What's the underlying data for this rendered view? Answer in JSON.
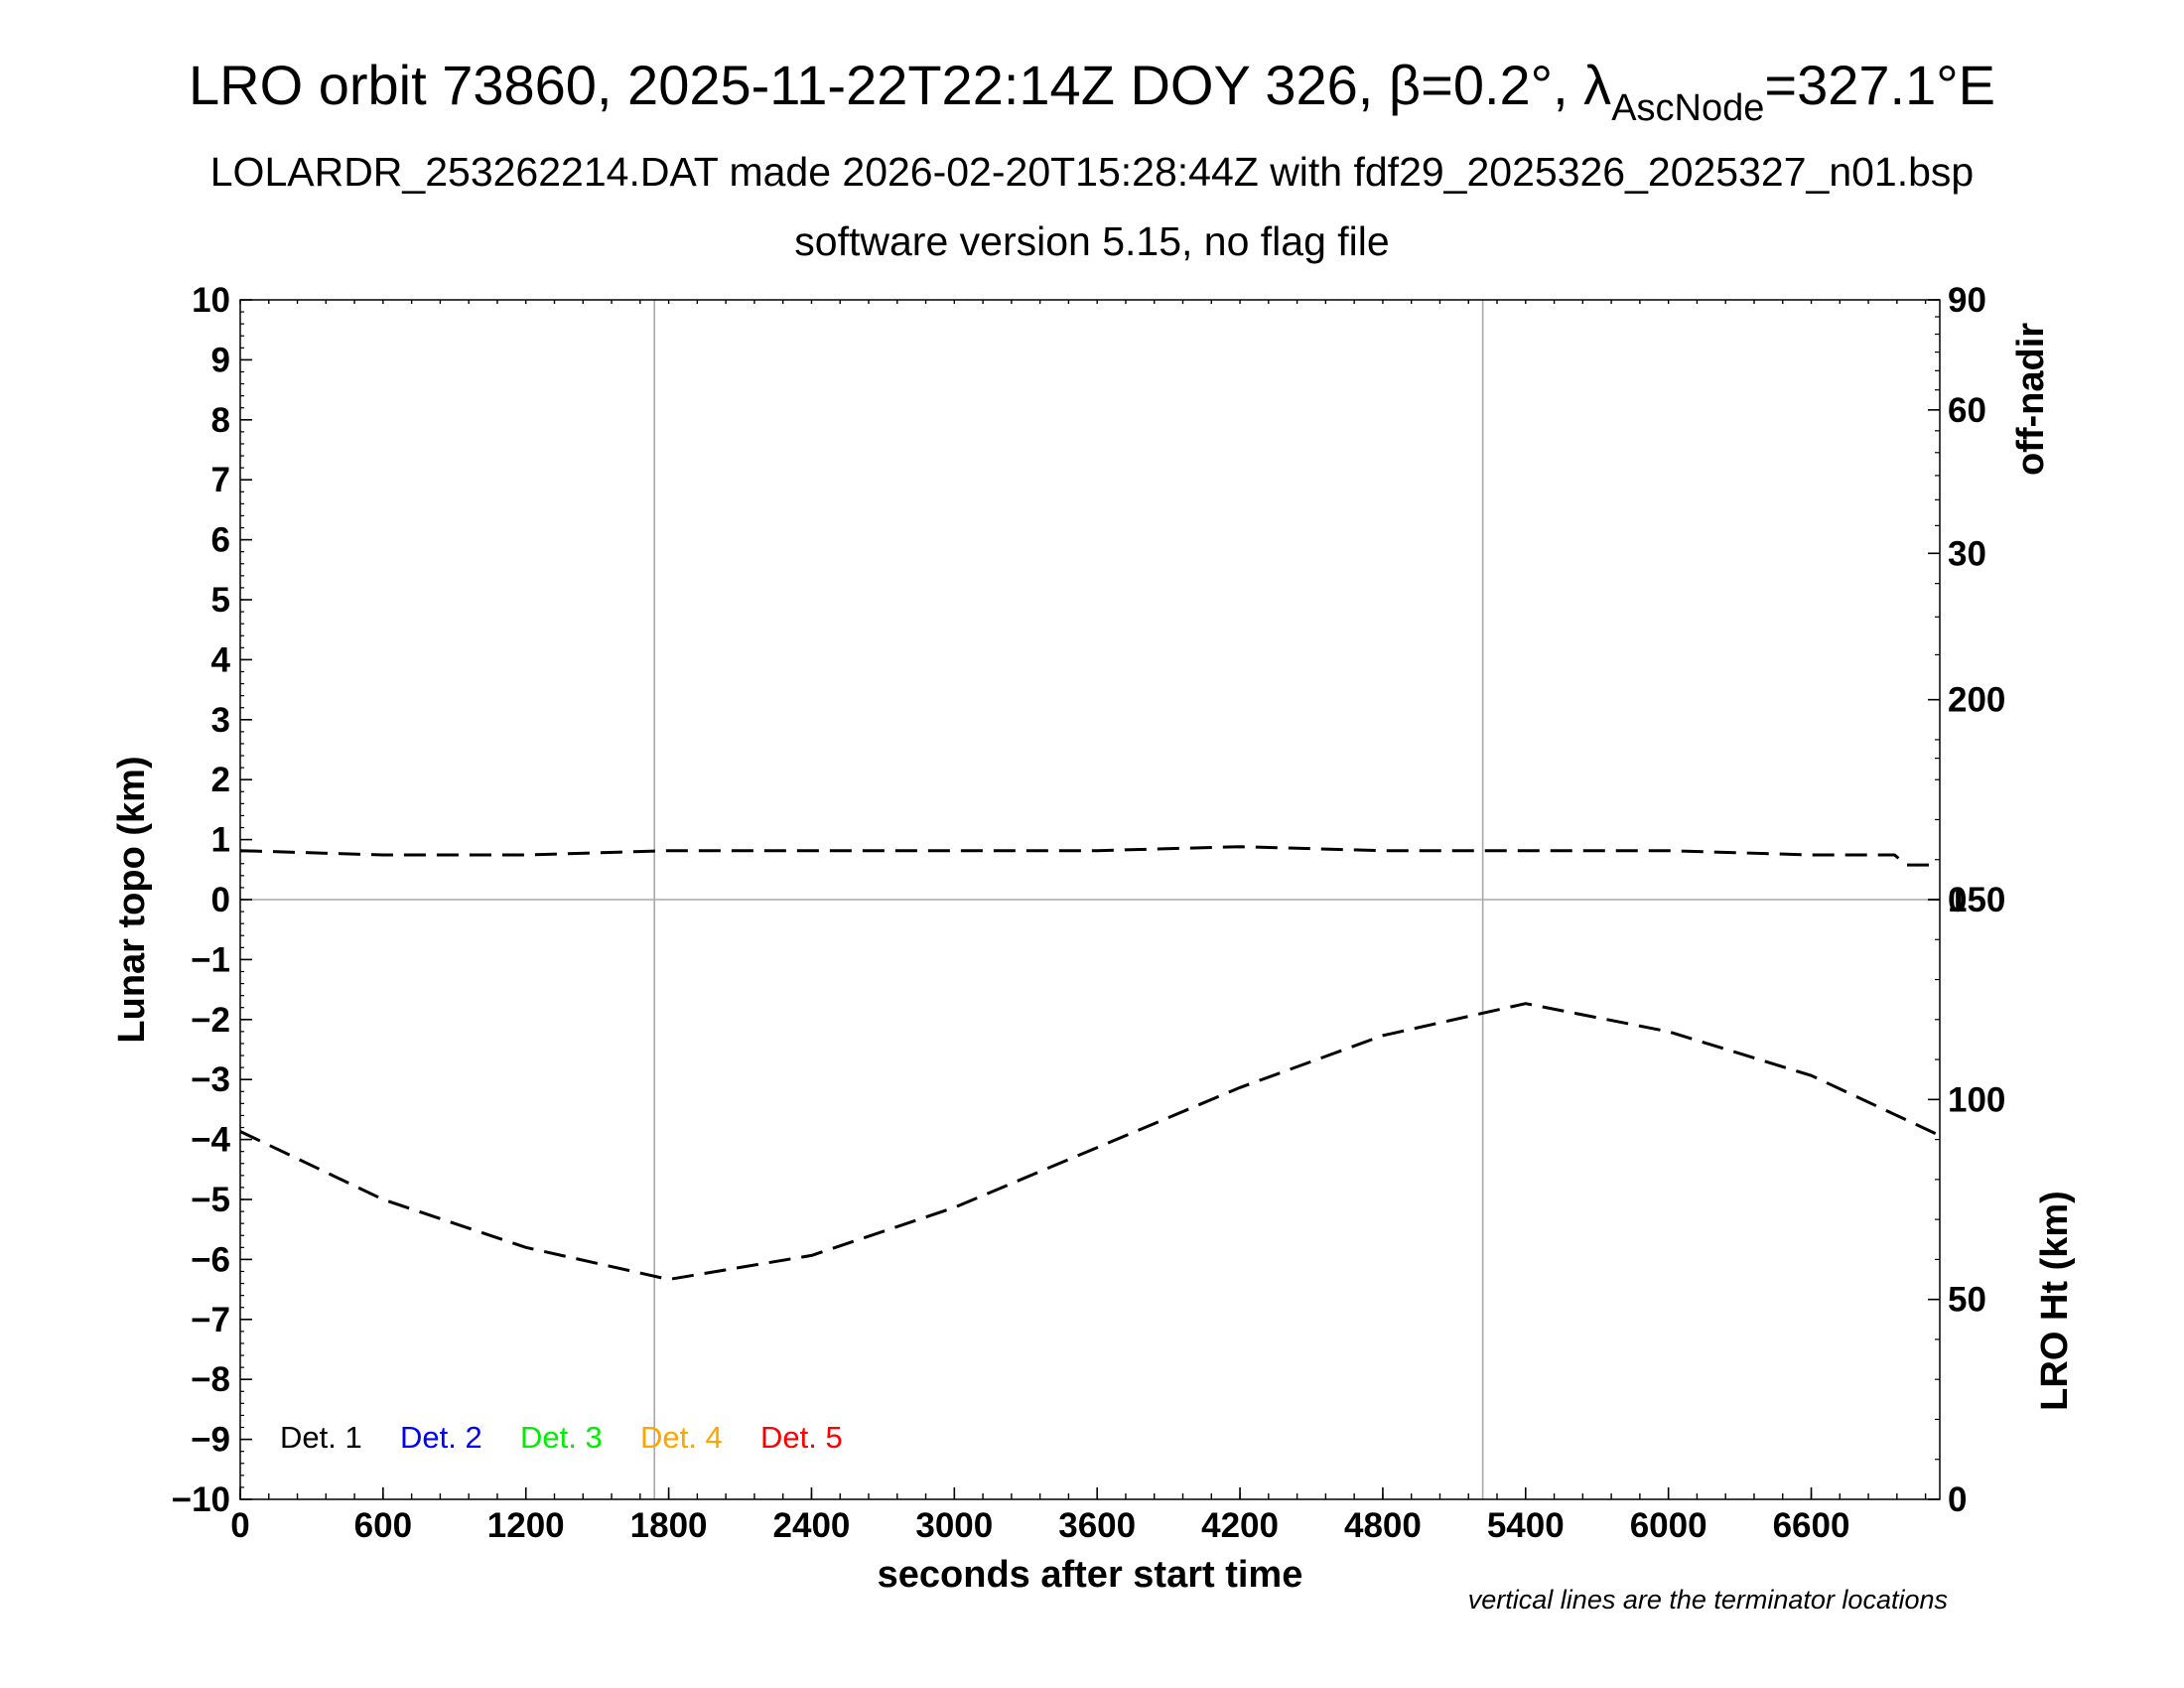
{
  "chart_data": {
    "type": "line",
    "title_main": "LRO orbit 73860, 2025-11-22T22:14Z DOY 326, β=0.2°, λ",
    "title_sub": "AscNode",
    "title_end": "=327.1°E",
    "subtitle_1": "LOLARDR_253262214.DAT made 2026-02-20T15:28:44Z with fdf29_2025326_2025327_n01.bsp",
    "subtitle_2": "software version 5.15, no flag file",
    "xlabel": "seconds after start time",
    "ylabel_left": "Lunar topo (km)",
    "ylabel_right_top": "off-nadir",
    "ylabel_right_bottom": "LRO Ht (km)",
    "footnote": "vertical lines are the terminator locations",
    "x_range": [
      0,
      7140
    ],
    "x_ticks": [
      "0",
      "600",
      "1200",
      "1800",
      "2400",
      "3000",
      "3600",
      "4200",
      "4800",
      "5400",
      "6000",
      "6600"
    ],
    "y_range": [
      -10,
      10
    ],
    "y_ticks": [
      "10",
      "9",
      "8",
      "7",
      "6",
      "5",
      "4",
      "3",
      "2",
      "1",
      "0",
      "−1",
      "−2",
      "−3",
      "−4",
      "−5",
      "−6",
      "−7",
      "−8",
      "−9",
      "−10"
    ],
    "right_top_ticks": [
      "90",
      "60",
      "30",
      "0"
    ],
    "right_top_tick_values": [
      90,
      60,
      30,
      0
    ],
    "right_top_scale_max": 90,
    "right_bottom_range": [
      0,
      300
    ],
    "right_bottom_ticks": [
      "200",
      "150",
      "100",
      "50",
      "0"
    ],
    "right_bottom_tick_values": [
      200,
      150,
      100,
      50,
      0
    ],
    "terminator_x": [
      1740,
      5220
    ],
    "grid": "vertical lines at terminators, horizontal line at 0",
    "legend_position": "bottom-left",
    "legend": [
      {
        "label": "Det. 1",
        "color": "#000000"
      },
      {
        "label": "Det. 2",
        "color": "#0000ff"
      },
      {
        "label": "Det. 3",
        "color": "#00ee00"
      },
      {
        "label": "Det. 4",
        "color": "#ffa500"
      },
      {
        "label": "Det. 5",
        "color": "#ff0000"
      }
    ],
    "series": [
      {
        "axis": "off-nadir",
        "style": "dashed",
        "x": [
          0,
          600,
          1200,
          1800,
          2400,
          3000,
          3600,
          4200,
          4800,
          5400,
          6000,
          6600,
          6950,
          7000,
          7140
        ],
        "y": [
          0.6,
          0.5,
          0.5,
          0.6,
          0.6,
          0.6,
          0.6,
          0.7,
          0.6,
          0.6,
          0.6,
          0.5,
          0.5,
          0.3,
          0.3
        ]
      },
      {
        "axis": "LRO Ht (km)",
        "style": "dashed",
        "x": [
          0,
          600,
          1200,
          1800,
          2400,
          3000,
          3600,
          4200,
          4800,
          5400,
          6000,
          6600,
          7140
        ],
        "y": [
          92,
          75,
          63,
          55,
          61,
          73,
          88,
          103,
          116,
          124,
          117,
          106,
          91
        ]
      }
    ]
  }
}
